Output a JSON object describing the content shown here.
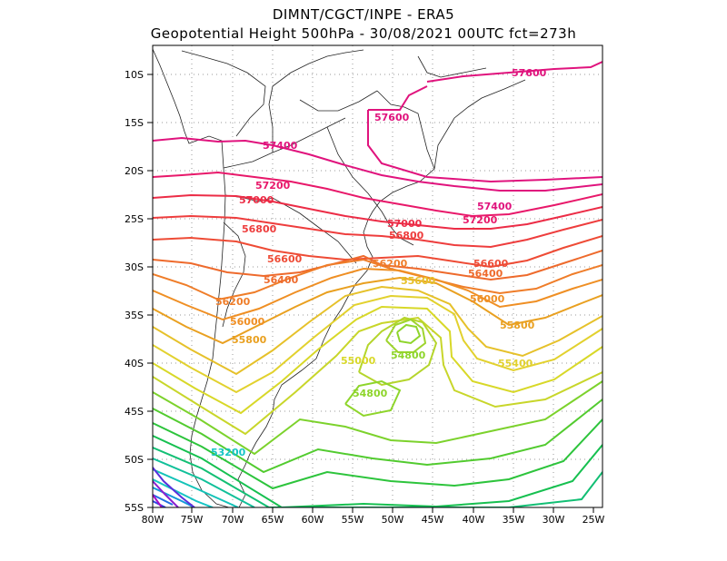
{
  "title_line1": "DIMNT/CGCT/INPE -  ERA5",
  "title_line2": "Geopotential Height 500hPa -  30/08/2021 00UTC fct=273h",
  "lat_labels": [
    "10S",
    "15S",
    "20S",
    "25S",
    "30S",
    "35S",
    "40S",
    "45S",
    "50S",
    "55S"
  ],
  "lon_labels": [
    "80W",
    "75W",
    "70W",
    "65W",
    "60W",
    "55W",
    "50W",
    "45W",
    "40W",
    "35W",
    "30W",
    "25W"
  ],
  "contour_labels": [
    {
      "text": "57600",
      "color": "#e0137d"
    },
    {
      "text": "57600",
      "color": "#e0137d"
    },
    {
      "text": "57400",
      "color": "#e0137d"
    },
    {
      "text": "57400",
      "color": "#e0137d"
    },
    {
      "text": "57200",
      "color": "#e8186a"
    },
    {
      "text": "57200",
      "color": "#e8186a"
    },
    {
      "text": "57000",
      "color": "#ec2c46"
    },
    {
      "text": "57000",
      "color": "#ec2c46"
    },
    {
      "text": "56800",
      "color": "#ee3d3d"
    },
    {
      "text": "56800",
      "color": "#ee3d3d"
    },
    {
      "text": "56600",
      "color": "#ee4b35"
    },
    {
      "text": "56600",
      "color": "#ee4b35"
    },
    {
      "text": "56400",
      "color": "#ee6a2c"
    },
    {
      "text": "56400",
      "color": "#ee6a2c"
    },
    {
      "text": "56200",
      "color": "#ef7d29"
    },
    {
      "text": "56200",
      "color": "#ef7d29"
    },
    {
      "text": "56000",
      "color": "#ef8f24"
    },
    {
      "text": "56000",
      "color": "#ef8f24"
    },
    {
      "text": "55800",
      "color": "#e9a020"
    },
    {
      "text": "55800",
      "color": "#e9a020"
    },
    {
      "text": "55600",
      "color": "#e6c12a"
    },
    {
      "text": "55400",
      "color": "#e2d12e"
    },
    {
      "text": "55000",
      "color": "#d8d828"
    },
    {
      "text": "54800",
      "color": "#8ed52b"
    },
    {
      "text": "54800",
      "color": "#8ed52b"
    },
    {
      "text": "53200",
      "color": "#15c4c4"
    }
  ]
}
